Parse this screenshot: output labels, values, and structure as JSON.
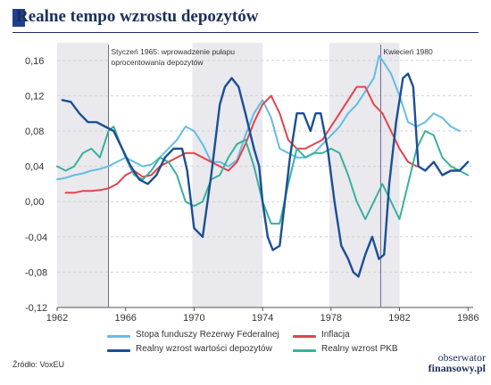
{
  "header": {
    "title": "Realne tempo wzrostu depozytów"
  },
  "footer": {
    "source": "Źródło: VoxEU",
    "brand_line1": "obserwator",
    "brand_line2": "finansowy.pl"
  },
  "chart_data": {
    "type": "line",
    "title": "Realne tempo wzrostu depozytów",
    "xlabel": "",
    "ylabel": "",
    "xlim": [
      1962,
      1986.3
    ],
    "ylim": [
      -0.12,
      0.18
    ],
    "x_ticks": [
      "1962",
      "1966",
      "1970",
      "1974",
      "1978",
      "1982",
      "1986"
    ],
    "y_ticks": [
      "0,16",
      "0,12",
      "0,08",
      "0,04",
      "0,00",
      "-0,04",
      "-0,08",
      "-0,12"
    ],
    "grid": true,
    "legend_position": "bottom",
    "shaded_periods": [
      [
        1962.0,
        1965.0
      ],
      [
        1969.9,
        1974.0
      ],
      [
        1977.9,
        1982.0
      ]
    ],
    "annotations": [
      {
        "x": 1965.0,
        "text": "Styczeń 1965: wprowadzenie pułapu oprocentowania depozytów",
        "lines": [
          "Styczeń 1965: wprowadzenie pułapu",
          "oprocentowania depozytów"
        ]
      },
      {
        "x": 1980.9,
        "text": "Kwiecień 1980",
        "lines": [
          "Kwiecień 1980"
        ]
      }
    ],
    "series": [
      {
        "name": "Stopa funduszy Rezerwy Federalnej",
        "color": "#64bde4",
        "x": [
          1962.0,
          1962.5,
          1963.0,
          1963.5,
          1964.0,
          1964.5,
          1965.0,
          1965.5,
          1966.0,
          1966.5,
          1967.0,
          1967.5,
          1968.0,
          1968.5,
          1969.0,
          1969.5,
          1970.0,
          1970.5,
          1971.0,
          1971.5,
          1972.0,
          1972.5,
          1973.0,
          1973.5,
          1974.0,
          1974.5,
          1975.0,
          1975.5,
          1976.0,
          1976.5,
          1977.0,
          1977.5,
          1978.0,
          1978.5,
          1979.0,
          1979.5,
          1980.0,
          1980.5,
          1980.8,
          1981.0,
          1981.5,
          1982.0,
          1982.5,
          1983.0,
          1983.5,
          1984.0,
          1984.5,
          1985.0,
          1985.5
        ],
        "y": [
          0.025,
          0.027,
          0.03,
          0.032,
          0.035,
          0.037,
          0.04,
          0.045,
          0.05,
          0.045,
          0.04,
          0.042,
          0.05,
          0.06,
          0.07,
          0.085,
          0.08,
          0.065,
          0.045,
          0.045,
          0.04,
          0.047,
          0.075,
          0.1,
          0.115,
          0.095,
          0.06,
          0.055,
          0.05,
          0.05,
          0.055,
          0.065,
          0.075,
          0.085,
          0.1,
          0.11,
          0.125,
          0.14,
          0.165,
          0.16,
          0.145,
          0.12,
          0.09,
          0.085,
          0.09,
          0.1,
          0.095,
          0.085,
          0.08
        ]
      },
      {
        "name": "Inflacja",
        "color": "#e2444a",
        "x": [
          1962.5,
          1963.0,
          1963.5,
          1964.0,
          1964.5,
          1965.0,
          1965.5,
          1966.0,
          1966.5,
          1967.0,
          1967.5,
          1968.0,
          1968.5,
          1969.0,
          1969.5,
          1970.0,
          1970.5,
          1971.0,
          1971.5,
          1972.0,
          1972.5,
          1973.0,
          1973.5,
          1974.0,
          1974.5,
          1975.0,
          1975.5,
          1976.0,
          1976.5,
          1977.0,
          1977.5,
          1978.0,
          1978.5,
          1979.0,
          1979.5,
          1980.0,
          1980.5,
          1981.0,
          1981.5,
          1982.0,
          1982.5,
          1983.0
        ],
        "y": [
          0.01,
          0.01,
          0.012,
          0.012,
          0.013,
          0.015,
          0.02,
          0.03,
          0.035,
          0.028,
          0.03,
          0.04,
          0.045,
          0.05,
          0.055,
          0.055,
          0.05,
          0.045,
          0.04,
          0.035,
          0.045,
          0.065,
          0.09,
          0.11,
          0.12,
          0.1,
          0.07,
          0.06,
          0.06,
          0.065,
          0.07,
          0.085,
          0.1,
          0.115,
          0.13,
          0.13,
          0.11,
          0.1,
          0.08,
          0.06,
          0.045,
          0.04
        ]
      },
      {
        "name": "Realny wzrost wartości depozytów",
        "color": "#1c4f94",
        "x": [
          1962.3,
          1962.8,
          1963.3,
          1963.8,
          1964.3,
          1964.8,
          1965.3,
          1965.8,
          1966.3,
          1966.8,
          1967.3,
          1967.8,
          1968.3,
          1968.8,
          1969.3,
          1969.6,
          1970.0,
          1970.5,
          1971.0,
          1971.5,
          1971.8,
          1972.2,
          1972.6,
          1973.0,
          1973.5,
          1973.8,
          1974.0,
          1974.3,
          1974.6,
          1975.0,
          1975.3,
          1975.6,
          1976.0,
          1976.4,
          1976.8,
          1977.1,
          1977.4,
          1977.8,
          1978.2,
          1978.6,
          1979.0,
          1979.3,
          1979.6,
          1980.0,
          1980.4,
          1980.8,
          1981.1,
          1981.4,
          1981.8,
          1982.2,
          1982.5,
          1982.8,
          1983.1,
          1983.5,
          1984.0,
          1984.5,
          1985.0,
          1985.5,
          1986.0
        ],
        "y": [
          0.115,
          0.113,
          0.1,
          0.09,
          0.09,
          0.085,
          0.08,
          0.06,
          0.04,
          0.025,
          0.02,
          0.03,
          0.05,
          0.06,
          0.06,
          0.035,
          -0.03,
          -0.04,
          0.03,
          0.11,
          0.13,
          0.14,
          0.13,
          0.1,
          0.06,
          0.04,
          0.0,
          -0.04,
          -0.055,
          -0.05,
          0.0,
          0.05,
          0.1,
          0.1,
          0.08,
          0.1,
          0.1,
          0.06,
          0.0,
          -0.05,
          -0.065,
          -0.08,
          -0.085,
          -0.06,
          -0.04,
          -0.065,
          -0.06,
          0.02,
          0.09,
          0.14,
          0.145,
          0.13,
          0.04,
          0.035,
          0.045,
          0.03,
          0.035,
          0.035,
          0.045
        ]
      },
      {
        "name": "Realny wzrost PKB",
        "color": "#3ab09e",
        "x": [
          1962.0,
          1962.5,
          1963.0,
          1963.5,
          1964.0,
          1964.5,
          1965.0,
          1965.3,
          1965.6,
          1966.0,
          1966.5,
          1967.0,
          1967.5,
          1968.0,
          1968.5,
          1969.0,
          1969.5,
          1970.0,
          1970.5,
          1971.0,
          1971.5,
          1972.0,
          1972.5,
          1973.0,
          1973.5,
          1974.0,
          1974.5,
          1975.0,
          1975.5,
          1976.0,
          1976.5,
          1977.0,
          1977.5,
          1978.0,
          1978.5,
          1979.0,
          1979.5,
          1980.0,
          1980.5,
          1981.0,
          1981.5,
          1982.0,
          1982.5,
          1983.0,
          1983.5,
          1984.0,
          1984.5,
          1985.0,
          1985.5,
          1986.0
        ],
        "y": [
          0.04,
          0.035,
          0.04,
          0.055,
          0.06,
          0.05,
          0.08,
          0.085,
          0.07,
          0.05,
          0.03,
          0.025,
          0.035,
          0.05,
          0.045,
          0.03,
          0.0,
          -0.005,
          0.0,
          0.025,
          0.03,
          0.05,
          0.065,
          0.07,
          0.04,
          0.0,
          -0.025,
          -0.025,
          0.02,
          0.06,
          0.05,
          0.055,
          0.055,
          0.06,
          0.055,
          0.03,
          0.0,
          -0.02,
          0.0,
          0.02,
          0.0,
          -0.02,
          0.02,
          0.06,
          0.08,
          0.075,
          0.05,
          0.04,
          0.035,
          0.03
        ]
      }
    ]
  }
}
